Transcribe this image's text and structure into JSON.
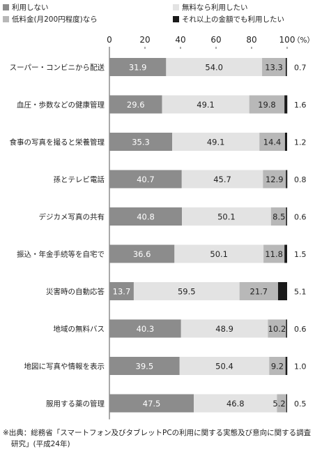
{
  "chart_data": {
    "type": "bar",
    "orientation": "horizontal",
    "stacked": true,
    "title": "",
    "xlabel": "",
    "ylabel": "",
    "xlim": [
      0,
      100
    ],
    "x_ticks": [
      "0",
      "20",
      "40",
      "60",
      "80",
      "100"
    ],
    "unit_label": "（%）",
    "grid": false,
    "legend_position": "top",
    "categories": [
      "スーパー・コンビニから配送",
      "血圧・歩数などの健康管理",
      "食事の写真を撮ると栄養管理",
      "孫とテレビ電話",
      "デジカメ写真の共有",
      "振込・年金手続等を自宅で",
      "災害時の自動応答",
      "地域の無料バス",
      "地図に写真や情報を表示",
      "服用する薬の管理"
    ],
    "series": [
      {
        "name": "利用しない",
        "color": "#8c8c8c",
        "values": [
          31.9,
          29.6,
          35.3,
          40.7,
          40.8,
          36.6,
          13.7,
          40.3,
          39.5,
          47.5
        ]
      },
      {
        "name": "無料なら利用したい",
        "color": "#e3e3e3",
        "values": [
          54.0,
          49.1,
          49.1,
          45.7,
          50.1,
          50.1,
          59.5,
          48.9,
          50.4,
          46.8
        ]
      },
      {
        "name": "低料金(月200円程度)なら",
        "color": "#b8b8b8",
        "values": [
          13.3,
          19.8,
          14.4,
          12.9,
          8.5,
          11.8,
          21.7,
          10.2,
          9.2,
          5.2
        ]
      },
      {
        "name": "それ以上の金額でも利用したい",
        "color": "#1a1a1a",
        "values": [
          0.7,
          1.6,
          1.2,
          0.8,
          0.6,
          1.5,
          5.1,
          0.6,
          1.0,
          0.5
        ]
      }
    ]
  },
  "footnote": "※出典：総務省「スマートフォン及びタブレットPCの利用に関する実態及び意向に関する調査研究」(平成24年)"
}
